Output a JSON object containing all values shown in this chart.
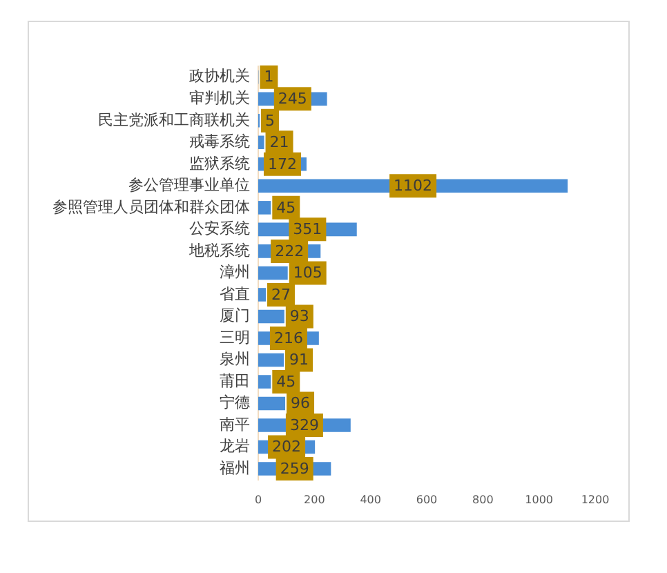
{
  "chart_data": {
    "type": "bar",
    "orientation": "horizontal",
    "categories": [
      "政协机关",
      "审判机关",
      "民主党派和工商联机关",
      "戒毒系统",
      "监狱系统",
      "参公管理事业单位",
      "参照管理人员团体和群众团体",
      "公安系统",
      "地税系统",
      "漳州",
      "省直",
      "厦门",
      "三明",
      "泉州",
      "莆田",
      "宁德",
      "南平",
      "龙岩",
      "福州"
    ],
    "values": [
      1,
      245,
      5,
      21,
      172,
      1102,
      45,
      351,
      222,
      105,
      27,
      93,
      216,
      91,
      45,
      96,
      329,
      202,
      259
    ],
    "color": "#4a8ed6",
    "xlim": [
      0,
      1200
    ],
    "xticks": [
      0,
      200,
      400,
      600,
      800,
      1000,
      1200
    ],
    "data_labels": true,
    "grid": false,
    "legend": false
  }
}
